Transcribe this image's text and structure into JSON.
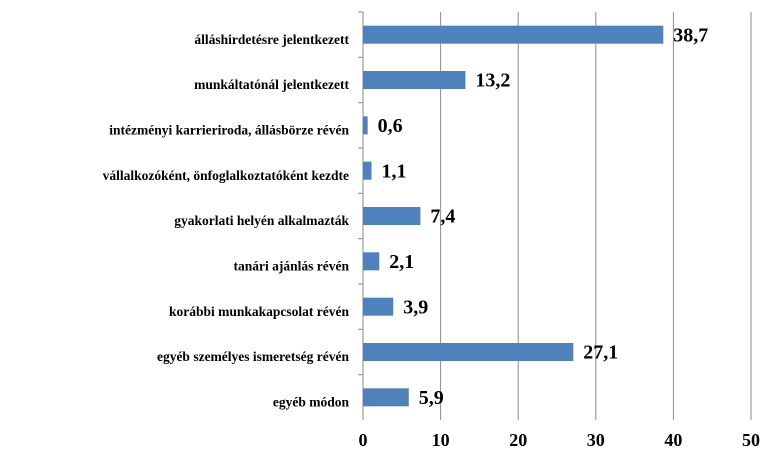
{
  "chart_data": {
    "type": "barh",
    "categories": [
      "álláshirdetésre jelentkezett",
      "munkáltatónál jelentkezett",
      "intézményi karrieriroda, állásbörze révén",
      "vállalkozóként, önfoglalkoztatóként kezdte",
      "gyakorlati helyén alkalmazták",
      "tanári ajánlás révén",
      "korábbi munkakapcsolat révén",
      "egyéb személyes ismeretség révén",
      "egyéb módon"
    ],
    "values": [
      38.7,
      13.2,
      0.6,
      1.1,
      7.4,
      2.1,
      3.9,
      27.1,
      5.9
    ],
    "value_labels": [
      "38,7",
      "13,2",
      "0,6",
      "1,1",
      "7,4",
      "2,1",
      "3,9",
      "27,1",
      "5,9"
    ],
    "color": "#4f81bd",
    "xlim": [
      0,
      50
    ],
    "xticks": [
      0,
      10,
      20,
      30,
      40,
      50
    ],
    "grid": true
  }
}
